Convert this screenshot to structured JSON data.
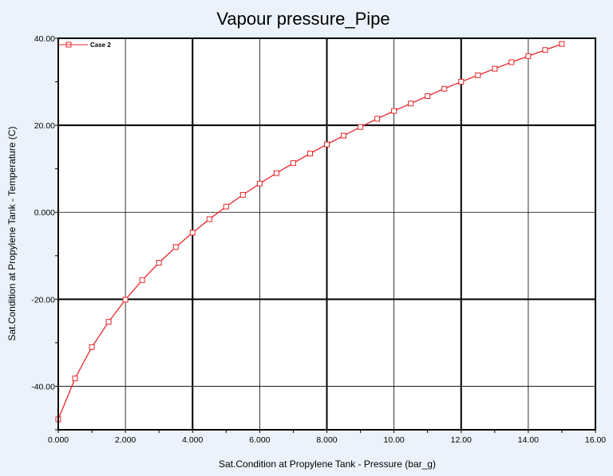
{
  "chart_data": {
    "type": "line",
    "title": "Vapour pressure_Pipe",
    "xlabel": "Sat.Condition at Propylene Tank - Pressure (bar_g)",
    "ylabel": "Sat.Condition at Propylene Tank - Temperature (C)",
    "xlim": [
      0,
      16
    ],
    "ylim": [
      -50,
      40
    ],
    "x_ticks": [
      0,
      2,
      4,
      6,
      8,
      10,
      12,
      14,
      16
    ],
    "x_tick_labels": [
      "0.000",
      "2.000",
      "4.000",
      "6.000",
      "8.000",
      "10.00",
      "12.00",
      "14.00",
      "16.00"
    ],
    "y_ticks": [
      -40,
      -20,
      0,
      20,
      40
    ],
    "y_tick_labels": [
      "-40.00",
      "-20.00",
      "0.000",
      "20.00",
      "40.00"
    ],
    "grid": true,
    "legend_position": "top-left",
    "series": [
      {
        "name": "Case 2",
        "color": "#e8262b",
        "marker": "square",
        "x": [
          0,
          0.5,
          1,
          1.5,
          2,
          2.5,
          3,
          3.5,
          4,
          4.5,
          5,
          5.5,
          6,
          6.5,
          7,
          7.5,
          8,
          8.5,
          9,
          9.5,
          10,
          10.5,
          11,
          11.5,
          12,
          12.5,
          13,
          13.5,
          14,
          14.5,
          15
        ],
        "y": [
          -47.6,
          -38.2,
          -31.0,
          -25.2,
          -20.1,
          -15.6,
          -11.6,
          -8.0,
          -4.7,
          -1.6,
          1.3,
          4.0,
          6.6,
          9.0,
          11.3,
          13.5,
          15.6,
          17.6,
          19.6,
          21.5,
          23.3,
          25.0,
          26.7,
          28.4,
          30.0,
          31.5,
          33.0,
          34.5,
          35.9,
          37.3,
          38.7
        ]
      }
    ]
  }
}
